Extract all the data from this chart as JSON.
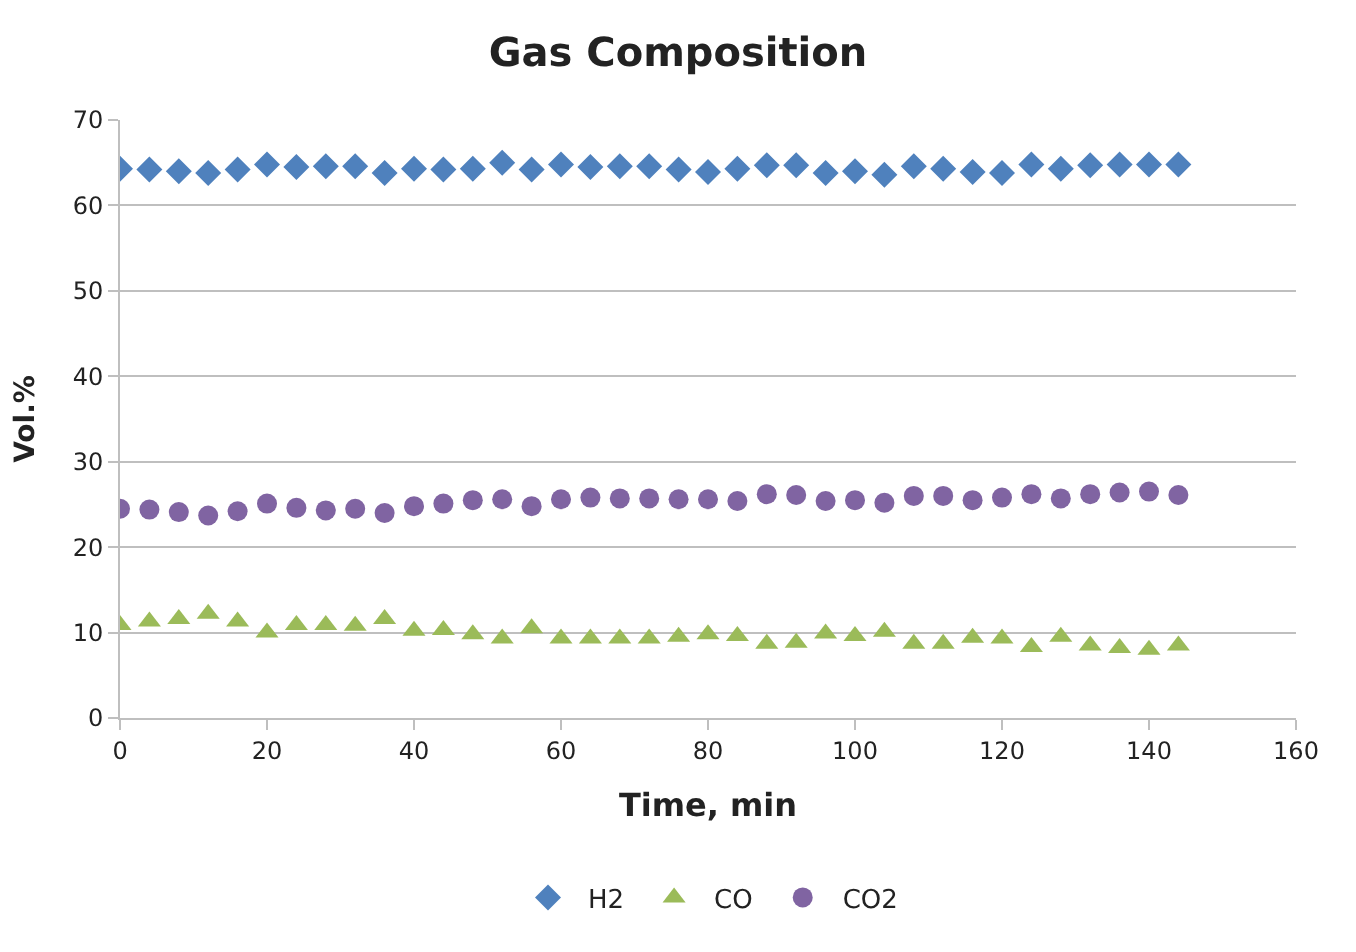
{
  "chart_data": {
    "type": "scatter",
    "title": "Gas Composition",
    "xlabel": "Time, min",
    "ylabel": "Vol.%",
    "x": [
      0,
      4,
      8,
      12,
      16,
      20,
      24,
      28,
      32,
      36,
      40,
      44,
      48,
      52,
      56,
      60,
      64,
      68,
      72,
      76,
      80,
      84,
      88,
      92,
      96,
      100,
      104,
      108,
      112,
      116,
      120,
      124,
      128,
      132,
      136,
      140,
      144
    ],
    "series": [
      {
        "name": "H2",
        "color": "#4f81bd",
        "marker": "diamond",
        "values": [
          64.3,
          64.2,
          64.0,
          63.8,
          64.2,
          64.8,
          64.5,
          64.6,
          64.6,
          63.8,
          64.3,
          64.2,
          64.3,
          65.0,
          64.2,
          64.8,
          64.5,
          64.6,
          64.6,
          64.2,
          63.9,
          64.3,
          64.7,
          64.7,
          63.8,
          64.0,
          63.6,
          64.6,
          64.3,
          63.9,
          63.8,
          64.8,
          64.3,
          64.7,
          64.8,
          64.8,
          64.8
        ]
      },
      {
        "name": "CO",
        "color": "#9bbb59",
        "marker": "triangle",
        "values": [
          10.9,
          11.3,
          11.6,
          12.2,
          11.3,
          10.0,
          10.9,
          10.9,
          10.8,
          11.6,
          10.2,
          10.3,
          9.8,
          9.3,
          10.5,
          9.3,
          9.3,
          9.3,
          9.3,
          9.5,
          9.8,
          9.6,
          8.7,
          8.8,
          9.9,
          9.6,
          10.1,
          8.7,
          8.7,
          9.4,
          9.3,
          8.3,
          9.5,
          8.5,
          8.2,
          8.0,
          8.5
        ]
      },
      {
        "name": "CO2",
        "color": "#8064a2",
        "marker": "circle",
        "values": [
          24.5,
          24.4,
          24.1,
          23.7,
          24.2,
          25.1,
          24.6,
          24.3,
          24.5,
          24.0,
          24.8,
          25.1,
          25.5,
          25.6,
          24.8,
          25.6,
          25.8,
          25.7,
          25.7,
          25.6,
          25.6,
          25.4,
          26.2,
          26.1,
          25.4,
          25.5,
          25.2,
          26.0,
          26.0,
          25.5,
          25.8,
          26.2,
          25.7,
          26.2,
          26.4,
          26.5,
          26.1
        ]
      }
    ],
    "xlim": [
      0,
      160
    ],
    "xticks": [
      0,
      20,
      40,
      60,
      80,
      100,
      120,
      140,
      160
    ],
    "ylim": [
      0,
      70
    ],
    "yticks": [
      0,
      10,
      20,
      30,
      40,
      50,
      60,
      70
    ],
    "grid": "y",
    "legend": "bottom"
  }
}
